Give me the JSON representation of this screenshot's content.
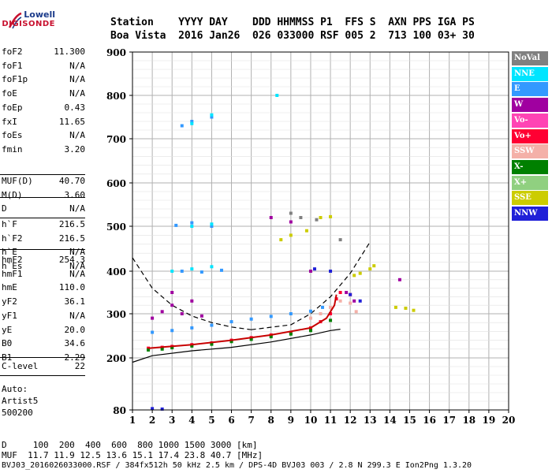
{
  "logo": {
    "line1": "Lowell",
    "line2": "DIGISONDE"
  },
  "header": {
    "row1": "Station    YYYY DAY    DDD HHMMSS P1  FFS S  AXN PPS IGA PS",
    "row2": "Boa Vista  2016 Jan26  026 033000 RSF 005 2  713 100 03+ 30"
  },
  "params_group1": [
    {
      "key": "foF2",
      "value": "11.300"
    },
    {
      "key": "foF1",
      "value": "N/A"
    },
    {
      "key": "foF1p",
      "value": "N/A"
    },
    {
      "key": "foE",
      "value": "N/A"
    },
    {
      "key": "foEp",
      "value": "0.43"
    },
    {
      "key": "fxI",
      "value": "11.65"
    },
    {
      "key": "foEs",
      "value": "N/A"
    },
    {
      "key": "fmin",
      "value": "3.20"
    }
  ],
  "params_group2": [
    {
      "key": "MUF(D)",
      "value": "40.70"
    },
    {
      "key": "M(D)",
      "value": "3.60"
    },
    {
      "key": "D",
      "value": "N/A"
    }
  ],
  "params_group3": [
    {
      "key": "h`F",
      "value": "216.5"
    },
    {
      "key": "h`F2",
      "value": "216.5"
    },
    {
      "key": "h`E",
      "value": "N/A"
    },
    {
      "key": "h`Es",
      "value": "N/A"
    }
  ],
  "params_group4": [
    {
      "key": "hmF2",
      "value": "254.3"
    },
    {
      "key": "hmF1",
      "value": "N/A"
    },
    {
      "key": "hmE",
      "value": "110.0"
    },
    {
      "key": "yF2",
      "value": "36.1"
    },
    {
      "key": "yF1",
      "value": "N/A"
    },
    {
      "key": "yE",
      "value": "20.0"
    },
    {
      "key": "B0",
      "value": "34.6"
    },
    {
      "key": "B1",
      "value": "2.29"
    }
  ],
  "params_group5": [
    {
      "key": "C-level",
      "value": "22"
    }
  ],
  "autoscale": {
    "line1": "Auto:",
    "line2": "Artist5",
    "line3": "500200"
  },
  "legend": [
    {
      "label": "NoVal",
      "color": "#808080"
    },
    {
      "label": "NNE",
      "color": "#00e5ff"
    },
    {
      "label": "E",
      "color": "#3399ff"
    },
    {
      "label": "W",
      "color": "#a000a0"
    },
    {
      "label": "Vo-",
      "color": "#ff44b4"
    },
    {
      "label": "Vo+",
      "color": "#ff0033"
    },
    {
      "label": "SSW",
      "color": "#f4b0a8"
    },
    {
      "label": "X-",
      "color": "#008000"
    },
    {
      "label": "X+",
      "color": "#90d080"
    },
    {
      "label": "SSE",
      "color": "#cccc00"
    },
    {
      "label": "NNW",
      "color": "#2020d8"
    }
  ],
  "footer": {
    "line1": "D     100  200  400  600  800 1000 1500 3000 [km]",
    "line2": "MUF  11.7 11.9 12.5 13.6 15.1 17.4 23.8 40.7 [MHz]",
    "line3": "BVJ03_2016026033000.RSF / 384fx512h 50 kHz 2.5 km / DPS-4D BVJ03 003 / 2.8 N 299.3 E Ion2Png 1.3.20"
  },
  "chart_data": {
    "type": "scatter",
    "xlim": [
      1,
      20
    ],
    "ylim": [
      80,
      900
    ],
    "y_axis_scale": "log",
    "xticks": [
      "1",
      "2",
      "3",
      "4",
      "5",
      "6",
      "7",
      "8",
      "9",
      "10",
      "11",
      "12",
      "13",
      "14",
      "15",
      "16",
      "17",
      "18",
      "19",
      "20"
    ],
    "yticks": [
      "80",
      "200",
      "300",
      "400",
      "500",
      "600",
      "700",
      "800",
      "900"
    ],
    "yticks_values": [
      80,
      200,
      300,
      400,
      500,
      600,
      700,
      800,
      900
    ],
    "grid": true,
    "legend_position": "right",
    "series": [
      {
        "name": "E",
        "color": "#3399ff",
        "points": [
          [
            2,
            258
          ],
          [
            3,
            262
          ],
          [
            4,
            268
          ],
          [
            5,
            274
          ],
          [
            6,
            282
          ],
          [
            7,
            288
          ],
          [
            8,
            294
          ],
          [
            9,
            300
          ],
          [
            10,
            306
          ],
          [
            10.6,
            315
          ],
          [
            3.5,
            400
          ],
          [
            4.5,
            398
          ],
          [
            5.5,
            402
          ],
          [
            3.2,
            502
          ],
          [
            4,
            508
          ],
          [
            5,
            500
          ],
          [
            4,
            740
          ],
          [
            5,
            750
          ],
          [
            3.5,
            730
          ]
        ]
      },
      {
        "name": "Vo+",
        "color": "#ff0033",
        "points": [
          [
            1.8,
            222
          ],
          [
            2.5,
            224
          ],
          [
            3,
            226
          ],
          [
            4,
            230
          ],
          [
            5,
            234
          ],
          [
            6,
            240
          ],
          [
            7,
            246
          ],
          [
            8,
            252
          ],
          [
            9,
            258
          ],
          [
            10,
            268
          ],
          [
            10.5,
            282
          ],
          [
            11,
            300
          ],
          [
            11.3,
            335
          ],
          [
            11.5,
            350
          ],
          [
            12,
            345
          ]
        ]
      },
      {
        "name": "X-",
        "color": "#008000",
        "points": [
          [
            1.8,
            218
          ],
          [
            2.5,
            220
          ],
          [
            3,
            223
          ],
          [
            4,
            227
          ],
          [
            5,
            231
          ],
          [
            6,
            237
          ],
          [
            7,
            242
          ],
          [
            8,
            248
          ],
          [
            9,
            254
          ],
          [
            10,
            262
          ],
          [
            11,
            285
          ]
        ]
      },
      {
        "name": "W",
        "color": "#a000a0",
        "points": [
          [
            2,
            290
          ],
          [
            2.5,
            305
          ],
          [
            3,
            320
          ],
          [
            3.5,
            300
          ],
          [
            4,
            330
          ],
          [
            4.5,
            295
          ],
          [
            3,
            350
          ],
          [
            8,
            520
          ],
          [
            9,
            510
          ],
          [
            10,
            400
          ],
          [
            11.8,
            350
          ],
          [
            12.2,
            330
          ],
          [
            14.5,
            380
          ]
        ]
      },
      {
        "name": "SSE",
        "color": "#cccc00",
        "points": [
          [
            12.2,
            390
          ],
          [
            12.5,
            395
          ],
          [
            13,
            405
          ],
          [
            13.2,
            412
          ],
          [
            14.3,
            315
          ],
          [
            14.8,
            313
          ],
          [
            15.2,
            308
          ],
          [
            8.5,
            470
          ],
          [
            9,
            480
          ],
          [
            9.8,
            490
          ],
          [
            10.5,
            520
          ],
          [
            11,
            522
          ]
        ]
      },
      {
        "name": "NNE",
        "color": "#00e5ff",
        "points": [
          [
            3,
            400
          ],
          [
            4,
            405
          ],
          [
            5,
            410
          ],
          [
            4,
            500
          ],
          [
            5,
            505
          ],
          [
            4,
            735
          ],
          [
            5,
            755
          ],
          [
            8.3,
            800
          ]
        ]
      },
      {
        "name": "SSW",
        "color": "#f4b0a8",
        "points": [
          [
            10,
            290
          ],
          [
            10.5,
            300
          ],
          [
            11,
            315
          ],
          [
            11.5,
            330
          ],
          [
            12,
            325
          ],
          [
            12.3,
            305
          ]
        ]
      },
      {
        "name": "NNW",
        "color": "#2020d8",
        "points": [
          [
            10.2,
            405
          ],
          [
            11,
            400
          ],
          [
            12,
            345
          ],
          [
            12.5,
            330
          ],
          [
            2,
            83
          ],
          [
            2.5,
            82
          ]
        ]
      },
      {
        "name": "NoVal",
        "color": "#808080",
        "points": [
          [
            9,
            530
          ],
          [
            9.5,
            520
          ],
          [
            10.3,
            515
          ],
          [
            11.5,
            470
          ]
        ]
      }
    ],
    "fit_curves": [
      {
        "style": "solid",
        "points": [
          [
            1,
            190
          ],
          [
            2,
            205
          ],
          [
            4,
            216
          ],
          [
            6,
            224
          ],
          [
            8,
            236
          ],
          [
            10,
            252
          ],
          [
            11,
            262
          ],
          [
            11.5,
            265
          ]
        ]
      },
      {
        "style": "dashed",
        "points": [
          [
            1,
            430
          ],
          [
            2,
            360
          ],
          [
            3,
            320
          ],
          [
            4,
            295
          ],
          [
            5,
            280
          ],
          [
            6,
            270
          ],
          [
            7,
            264
          ]
        ]
      },
      {
        "style": "dashed",
        "points": [
          [
            7,
            264
          ],
          [
            9,
            275
          ],
          [
            10,
            300
          ],
          [
            11,
            340
          ],
          [
            12,
            395
          ],
          [
            13,
            465
          ]
        ]
      }
    ],
    "profile_curve": {
      "color": "#c80000",
      "points": [
        [
          1.8,
          222
        ],
        [
          4,
          230
        ],
        [
          6,
          240
        ],
        [
          8,
          252
        ],
        [
          10,
          268
        ],
        [
          10.8,
          290
        ],
        [
          11.2,
          320
        ],
        [
          11.3,
          345
        ]
      ]
    }
  }
}
